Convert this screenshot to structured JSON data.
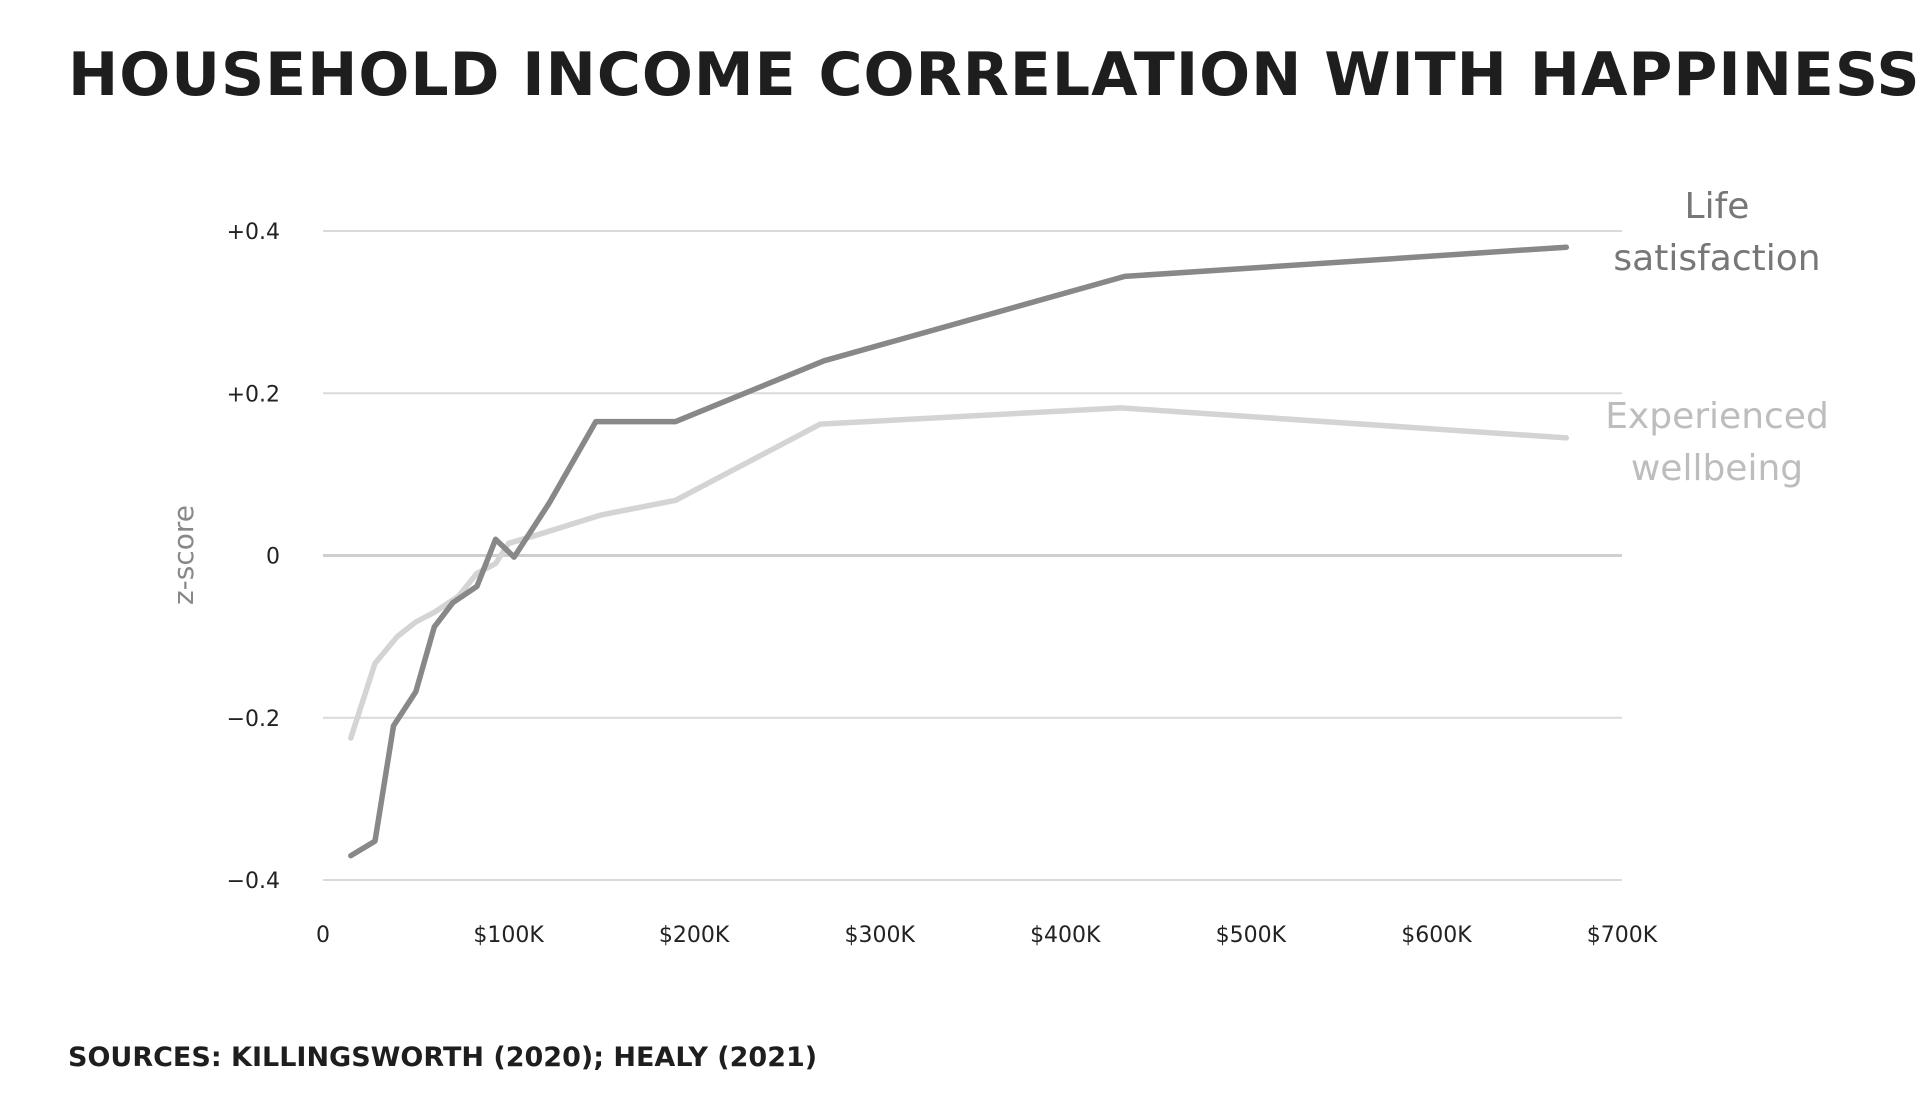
{
  "title": "HOUSEHOLD INCOME CORRELATION WITH HAPPINESS",
  "source": "SOURCES: KILLINGSWORTH (2020); HEALY (2021)",
  "chart_data": {
    "type": "line",
    "title": "HOUSEHOLD INCOME CORRELATION WITH HAPPINESS",
    "xlabel": "",
    "ylabel": "z-score",
    "xlim": [
      0,
      700000
    ],
    "ylim": [
      -0.4,
      0.4
    ],
    "x_ticks": [
      0,
      100000,
      200000,
      300000,
      400000,
      500000,
      600000,
      700000
    ],
    "x_tick_labels": [
      "0",
      "$100K",
      "$200K",
      "$300K",
      "$400K",
      "$500K",
      "$600K",
      "$700K"
    ],
    "y_ticks": [
      0.4,
      0.2,
      0,
      -0.2,
      -0.4
    ],
    "y_tick_labels": [
      "+0.4",
      "+0.2",
      "0",
      "−0.2",
      "−0.4"
    ],
    "grid": true,
    "legend": "inline labels at right end of each line",
    "series": [
      {
        "name": "Life\nsatisfaction",
        "color": "#888888",
        "points": [
          [
            15000,
            -0.37
          ],
          [
            28000,
            -0.352
          ],
          [
            38000,
            -0.21
          ],
          [
            50000,
            -0.168
          ],
          [
            60000,
            -0.088
          ],
          [
            70000,
            -0.058
          ],
          [
            83000,
            -0.038
          ],
          [
            93000,
            0.02
          ],
          [
            103000,
            -0.002
          ],
          [
            122000,
            0.065
          ],
          [
            147000,
            0.165
          ],
          [
            190000,
            0.165
          ],
          [
            270000,
            0.24
          ],
          [
            432000,
            0.344
          ],
          [
            670000,
            0.38
          ]
        ]
      },
      {
        "name": "Experienced\nwellbeing",
        "color": "#d4d4d4",
        "points": [
          [
            15000,
            -0.225
          ],
          [
            28000,
            -0.133
          ],
          [
            40000,
            -0.1
          ],
          [
            50000,
            -0.082
          ],
          [
            60000,
            -0.07
          ],
          [
            73000,
            -0.05
          ],
          [
            83000,
            -0.022
          ],
          [
            93000,
            -0.01
          ],
          [
            100000,
            0.015
          ],
          [
            115000,
            0.025
          ],
          [
            150000,
            0.05
          ],
          [
            190000,
            0.068
          ],
          [
            268000,
            0.162
          ],
          [
            430000,
            0.182
          ],
          [
            670000,
            0.145
          ]
        ]
      }
    ]
  }
}
